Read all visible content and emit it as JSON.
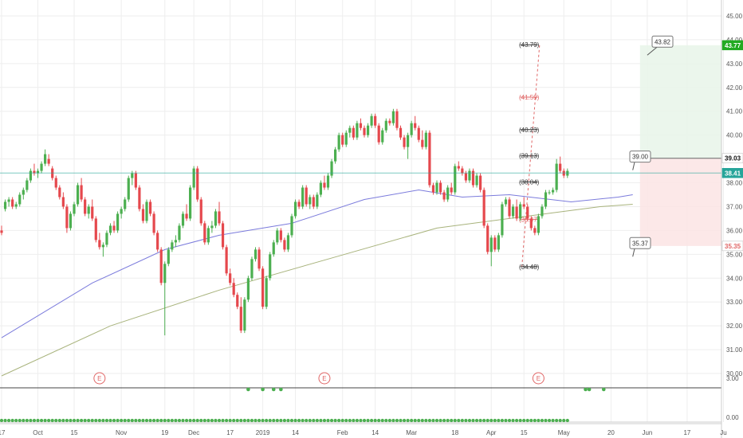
{
  "chart_data": {
    "type": "candlestick",
    "y_axis": {
      "min": 29.5,
      "max": 45.5,
      "side": "right",
      "ticks": [
        "45.00",
        "44.00",
        "43.00",
        "42.00",
        "41.00",
        "40.00",
        "39.00",
        "38.00",
        "37.00",
        "36.00",
        "35.00",
        "34.00",
        "33.00",
        "32.00",
        "31.00",
        "30.00"
      ]
    },
    "x_axis": {
      "ticks": [
        {
          "label": "17",
          "i": 0
        },
        {
          "label": "Oct",
          "i": 10
        },
        {
          "label": "15",
          "i": 20
        },
        {
          "label": "Nov",
          "i": 33
        },
        {
          "label": "19",
          "i": 45
        },
        {
          "label": "Dec",
          "i": 53
        },
        {
          "label": "17",
          "i": 63
        },
        {
          "label": "2019",
          "i": 72
        },
        {
          "label": "14",
          "i": 81
        },
        {
          "label": "Feb",
          "i": 94
        },
        {
          "label": "14",
          "i": 103
        },
        {
          "label": "Mar",
          "i": 113
        },
        {
          "label": "18",
          "i": 125
        },
        {
          "label": "Apr",
          "i": 135
        },
        {
          "label": "15",
          "i": 144
        },
        {
          "label": "May",
          "i": 155
        },
        {
          "label": "20",
          "i": 168
        },
        {
          "label": "Jun",
          "i": 178
        },
        {
          "label": "17",
          "i": 189
        },
        {
          "label": "Ju",
          "i": 199
        }
      ]
    },
    "candles": [
      [
        36.0,
        36.2,
        35.8,
        35.9
      ],
      [
        36.9,
        37.3,
        36.8,
        37.2
      ],
      [
        37.2,
        37.4,
        37.0,
        37.3
      ],
      [
        37.3,
        37.4,
        36.9,
        37.0
      ],
      [
        37.0,
        37.2,
        36.9,
        37.1
      ],
      [
        37.1,
        37.6,
        37.0,
        37.5
      ],
      [
        37.5,
        37.8,
        37.3,
        37.7
      ],
      [
        37.7,
        38.2,
        37.6,
        38.1
      ],
      [
        38.1,
        38.6,
        38.0,
        38.5
      ],
      [
        38.5,
        38.8,
        38.3,
        38.4
      ],
      [
        38.4,
        38.6,
        38.2,
        38.5
      ],
      [
        38.5,
        38.9,
        38.4,
        38.8
      ],
      [
        38.8,
        39.4,
        38.7,
        39.2
      ],
      [
        39.0,
        39.2,
        38.7,
        38.8
      ],
      [
        38.6,
        38.7,
        38.1,
        38.2
      ],
      [
        38.2,
        38.3,
        37.7,
        37.8
      ],
      [
        37.8,
        37.9,
        37.3,
        37.4
      ],
      [
        37.4,
        37.6,
        36.9,
        37.0
      ],
      [
        37.0,
        37.1,
        35.9,
        36.1
      ],
      [
        36.1,
        36.8,
        36.0,
        36.7
      ],
      [
        36.7,
        37.2,
        36.6,
        37.1
      ],
      [
        37.1,
        38.0,
        37.0,
        37.9
      ],
      [
        37.9,
        38.2,
        37.2,
        37.3
      ],
      [
        37.3,
        37.4,
        36.6,
        36.7
      ],
      [
        36.7,
        37.1,
        36.5,
        37.0
      ],
      [
        37.0,
        37.3,
        36.4,
        36.5
      ],
      [
        36.5,
        36.6,
        35.5,
        35.6
      ],
      [
        35.6,
        35.9,
        35.2,
        35.3
      ],
      [
        35.3,
        35.5,
        34.9,
        35.4
      ],
      [
        35.4,
        36.0,
        35.3,
        35.9
      ],
      [
        35.9,
        36.3,
        35.8,
        36.2
      ],
      [
        36.2,
        36.4,
        35.9,
        36.0
      ],
      [
        36.0,
        36.8,
        35.9,
        36.7
      ],
      [
        36.7,
        37.0,
        36.5,
        36.9
      ],
      [
        36.9,
        37.4,
        36.8,
        37.3
      ],
      [
        37.3,
        38.3,
        37.2,
        38.2
      ],
      [
        38.2,
        38.5,
        37.9,
        38.4
      ],
      [
        38.4,
        38.5,
        37.7,
        37.8
      ],
      [
        37.8,
        37.9,
        36.8,
        36.9
      ],
      [
        36.9,
        37.1,
        36.3,
        36.4
      ],
      [
        36.4,
        37.3,
        36.3,
        37.2
      ],
      [
        37.2,
        37.3,
        36.6,
        36.7
      ],
      [
        36.7,
        36.8,
        35.8,
        35.9
      ],
      [
        35.9,
        36.0,
        35.1,
        35.2
      ],
      [
        35.2,
        35.3,
        33.7,
        33.8
      ],
      [
        33.8,
        34.7,
        31.6,
        34.6
      ],
      [
        34.6,
        35.3,
        34.5,
        35.2
      ],
      [
        35.2,
        35.6,
        35.1,
        35.5
      ],
      [
        35.5,
        35.8,
        35.3,
        35.6
      ],
      [
        35.6,
        36.3,
        35.5,
        36.2
      ],
      [
        36.2,
        36.8,
        36.1,
        36.7
      ],
      [
        36.7,
        37.1,
        36.4,
        36.5
      ],
      [
        36.5,
        37.9,
        36.4,
        37.8
      ],
      [
        37.8,
        38.7,
        37.7,
        38.6
      ],
      [
        38.6,
        38.7,
        37.2,
        37.3
      ],
      [
        37.3,
        37.4,
        36.2,
        36.3
      ],
      [
        36.3,
        36.4,
        35.4,
        35.5
      ],
      [
        35.5,
        36.2,
        35.4,
        36.1
      ],
      [
        36.1,
        36.4,
        35.9,
        36.2
      ],
      [
        36.2,
        36.9,
        36.1,
        36.8
      ],
      [
        36.8,
        37.2,
        36.2,
        36.3
      ],
      [
        36.3,
        36.4,
        35.2,
        35.3
      ],
      [
        35.3,
        35.4,
        34.1,
        34.2
      ],
      [
        34.2,
        34.4,
        33.7,
        33.8
      ],
      [
        33.8,
        34.0,
        33.2,
        33.3
      ],
      [
        33.3,
        33.4,
        32.7,
        32.8
      ],
      [
        32.8,
        33.2,
        31.7,
        31.8
      ],
      [
        31.8,
        33.2,
        31.7,
        33.1
      ],
      [
        33.1,
        34.1,
        33.0,
        34.0
      ],
      [
        34.0,
        34.9,
        33.9,
        34.8
      ],
      [
        34.8,
        35.3,
        34.7,
        35.2
      ],
      [
        35.2,
        35.3,
        34.3,
        34.4
      ],
      [
        34.4,
        34.5,
        32.7,
        32.8
      ],
      [
        32.8,
        34.1,
        32.7,
        34.0
      ],
      [
        34.0,
        35.1,
        33.9,
        35.0
      ],
      [
        35.0,
        35.6,
        34.9,
        35.5
      ],
      [
        35.5,
        36.1,
        35.4,
        36.0
      ],
      [
        36.0,
        36.1,
        35.5,
        35.6
      ],
      [
        35.6,
        35.7,
        35.1,
        35.2
      ],
      [
        35.2,
        35.9,
        35.1,
        35.8
      ],
      [
        35.8,
        36.7,
        35.7,
        36.6
      ],
      [
        36.6,
        37.3,
        36.5,
        37.2
      ],
      [
        37.2,
        37.3,
        36.9,
        37.0
      ],
      [
        37.0,
        37.9,
        36.9,
        37.8
      ],
      [
        37.8,
        37.9,
        37.0,
        37.1
      ],
      [
        37.1,
        37.5,
        36.9,
        37.4
      ],
      [
        37.4,
        37.5,
        36.9,
        37.0
      ],
      [
        37.0,
        37.6,
        36.9,
        37.5
      ],
      [
        37.5,
        38.1,
        37.4,
        38.0
      ],
      [
        38.0,
        38.3,
        37.7,
        37.8
      ],
      [
        37.8,
        38.4,
        37.7,
        38.3
      ],
      [
        38.3,
        39.0,
        38.2,
        38.9
      ],
      [
        38.9,
        39.5,
        38.8,
        39.4
      ],
      [
        39.4,
        40.1,
        39.3,
        40.0
      ],
      [
        40.0,
        40.1,
        39.5,
        39.6
      ],
      [
        39.6,
        40.2,
        39.5,
        40.1
      ],
      [
        40.1,
        40.4,
        39.9,
        40.3
      ],
      [
        40.3,
        40.4,
        39.8,
        39.9
      ],
      [
        39.9,
        40.6,
        39.8,
        40.5
      ],
      [
        40.5,
        40.7,
        40.2,
        40.3
      ],
      [
        40.3,
        40.4,
        39.9,
        40.0
      ],
      [
        40.0,
        40.5,
        39.9,
        40.4
      ],
      [
        40.4,
        40.9,
        40.3,
        40.8
      ],
      [
        40.8,
        40.9,
        40.3,
        40.4
      ],
      [
        40.4,
        40.5,
        39.6,
        39.7
      ],
      [
        39.7,
        40.3,
        39.6,
        40.2
      ],
      [
        40.2,
        40.7,
        40.1,
        40.6
      ],
      [
        40.6,
        40.7,
        40.4,
        40.5
      ],
      [
        40.5,
        41.1,
        40.4,
        41.0
      ],
      [
        41.0,
        41.1,
        40.2,
        40.3
      ],
      [
        40.3,
        40.4,
        39.8,
        39.9
      ],
      [
        39.9,
        40.0,
        39.4,
        39.5
      ],
      [
        39.5,
        40.1,
        39.0,
        40.0
      ],
      [
        40.0,
        40.6,
        39.9,
        40.5
      ],
      [
        40.5,
        40.8,
        40.2,
        40.3
      ],
      [
        40.3,
        40.4,
        39.7,
        39.8
      ],
      [
        39.8,
        40.2,
        39.4,
        39.5
      ],
      [
        39.5,
        40.2,
        39.4,
        40.1
      ],
      [
        40.1,
        40.2,
        37.8,
        37.9
      ],
      [
        37.9,
        38.0,
        37.5,
        37.6
      ],
      [
        37.6,
        38.1,
        37.5,
        38.0
      ],
      [
        38.0,
        38.1,
        37.5,
        37.6
      ],
      [
        37.6,
        37.7,
        37.2,
        37.3
      ],
      [
        37.3,
        37.9,
        37.2,
        37.8
      ],
      [
        37.8,
        38.0,
        37.5,
        37.6
      ],
      [
        37.6,
        38.8,
        37.5,
        38.7
      ],
      [
        38.7,
        38.9,
        38.5,
        38.6
      ],
      [
        38.6,
        38.7,
        38.3,
        38.4
      ],
      [
        38.4,
        38.5,
        38.0,
        38.1
      ],
      [
        38.1,
        38.6,
        38.0,
        38.5
      ],
      [
        38.5,
        38.6,
        37.8,
        37.9
      ],
      [
        37.9,
        38.4,
        37.8,
        38.3
      ],
      [
        38.3,
        38.4,
        37.6,
        37.7
      ],
      [
        37.7,
        37.8,
        36.1,
        36.2
      ],
      [
        36.2,
        36.3,
        35.0,
        35.1
      ],
      [
        35.1,
        35.8,
        34.5,
        35.7
      ],
      [
        35.7,
        35.8,
        35.1,
        35.2
      ],
      [
        35.2,
        35.9,
        35.1,
        35.8
      ],
      [
        35.8,
        37.2,
        35.7,
        37.1
      ],
      [
        37.1,
        37.4,
        37.0,
        37.3
      ],
      [
        37.3,
        37.4,
        36.5,
        36.6
      ],
      [
        36.6,
        37.1,
        36.5,
        37.0
      ],
      [
        37.0,
        37.3,
        36.4,
        36.5
      ],
      [
        36.5,
        37.2,
        36.4,
        37.1
      ],
      [
        37.1,
        37.4,
        36.9,
        37.0
      ],
      [
        37.0,
        37.1,
        36.4,
        36.5
      ],
      [
        36.5,
        36.6,
        36.0,
        36.1
      ],
      [
        36.1,
        36.2,
        35.8,
        35.9
      ],
      [
        35.9,
        36.7,
        35.8,
        36.6
      ],
      [
        36.6,
        37.1,
        36.5,
        37.0
      ],
      [
        37.0,
        37.7,
        36.9,
        37.6
      ],
      [
        37.6,
        37.7,
        37.5,
        37.6
      ],
      [
        37.6,
        37.8,
        37.5,
        37.7
      ],
      [
        37.7,
        39.0,
        37.6,
        38.8
      ],
      [
        38.8,
        39.1,
        38.4,
        38.5
      ],
      [
        38.5,
        38.6,
        38.2,
        38.3
      ],
      [
        38.3,
        38.6,
        38.2,
        38.5
      ]
    ],
    "overlays": {
      "ma_fast": {
        "color": "#7b7bdc",
        "points": [
          [
            0,
            31.5
          ],
          [
            25,
            33.8
          ],
          [
            45,
            35.2
          ],
          [
            60,
            35.8
          ],
          [
            80,
            36.3
          ],
          [
            100,
            37.3
          ],
          [
            115,
            37.7
          ],
          [
            127,
            37.4
          ],
          [
            140,
            37.5
          ],
          [
            157,
            37.2
          ],
          [
            170,
            37.4
          ],
          [
            174,
            37.5
          ]
        ]
      },
      "ma_slow": {
        "color": "#a8b37c",
        "points": [
          [
            0,
            29.9
          ],
          [
            30,
            32.0
          ],
          [
            60,
            33.5
          ],
          [
            90,
            34.8
          ],
          [
            120,
            36.1
          ],
          [
            145,
            36.6
          ],
          [
            165,
            37.0
          ],
          [
            174,
            37.1
          ]
        ]
      }
    },
    "fib_levels": [
      {
        "label": "43.79",
        "value": 43.79,
        "color": "#333333"
      },
      {
        "label": "41.59",
        "value": 41.59,
        "color": "#e06666"
      },
      {
        "label": "40.23",
        "value": 40.23,
        "color": "#333333"
      },
      {
        "label": "39.13",
        "value": 39.13,
        "color": "#333333"
      },
      {
        "label": "38.04",
        "value": 38.04,
        "color": "#333333"
      },
      {
        "label": "36.47",
        "value": 36.47,
        "color": "#e06666"
      },
      {
        "label": "34.48",
        "value": 34.48,
        "color": "#333333"
      }
    ],
    "callouts": [
      {
        "label": "43.82",
        "value": 43.82
      },
      {
        "label": "39.00",
        "value": 39.0
      },
      {
        "label": "35.37",
        "value": 35.37
      }
    ],
    "price_tags": [
      {
        "label": "43.77",
        "value": 43.77,
        "bg": "#22aa22",
        "fg": "#ffffff"
      },
      {
        "label": "39.03",
        "value": 39.03,
        "bg": "#ffffff",
        "fg": "#111111"
      },
      {
        "label": "38.41",
        "value": 38.41,
        "bg": "#27a59a",
        "fg": "#ffffff"
      },
      {
        "label": "35.35",
        "value": 35.35,
        "bg": "#ffffff",
        "fg": "#e06666"
      }
    ],
    "current_price": 38.41,
    "trade_box": {
      "entry": 39.03,
      "target": 43.77,
      "stop": 35.35
    },
    "earnings_markers": [
      {
        "label": "E",
        "i": 27
      },
      {
        "label": "E",
        "i": 89
      },
      {
        "label": "E",
        "i": 148
      }
    ],
    "indicator_pane": {
      "ticks": [
        "3.00",
        "0.00"
      ],
      "upper_dots_i": [
        68,
        72,
        75,
        77,
        161,
        162,
        166
      ],
      "bottom_dots_every": 1
    },
    "colors": {
      "up": "#4caf50",
      "down": "#e5484d",
      "grid": "#eeeeee",
      "hline": "#27a59a"
    }
  }
}
